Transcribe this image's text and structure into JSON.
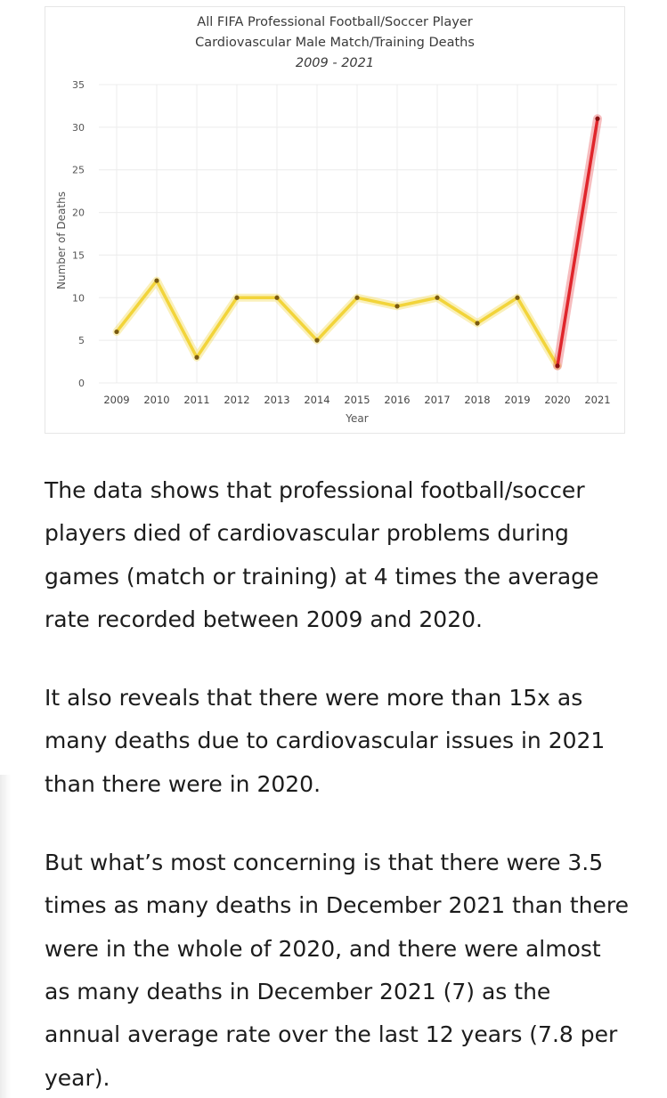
{
  "chart_data": {
    "type": "line",
    "title": "All FIFA Professional Football/Soccer Player",
    "title_line2": "Cardiovascular Male Match/Training Deaths",
    "subtitle": "2009 - 2021",
    "xlabel": "Year",
    "ylabel": "Number of Deaths",
    "ylim": [
      0,
      35
    ],
    "yticks": [
      0,
      5,
      10,
      15,
      20,
      25,
      30,
      35
    ],
    "grid": true,
    "categories": [
      "2009",
      "2010",
      "2011",
      "2012",
      "2013",
      "2014",
      "2015",
      "2016",
      "2017",
      "2018",
      "2019",
      "2020",
      "2021"
    ],
    "series": [
      {
        "name": "Deaths",
        "values": [
          6,
          12,
          3,
          10,
          10,
          5,
          10,
          9,
          10,
          7,
          10,
          2,
          31
        ],
        "color": "#f2d43a",
        "highlight_color": "#e0252b",
        "highlight_from_index": 11
      }
    ]
  },
  "article": {
    "paragraphs": [
      "The data shows that professional football/soccer players died of cardiovascular problems during games (match or training) at 4 times the average rate recorded between 2009 and 2020.",
      "It also reveals that there were more than 15x as many deaths due to cardiovascular issues in 2021 than there were in 2020.",
      "But what’s most concerning is that there were 3.5 times as many deaths in December 2021 than there were in the whole of 2020, and there were almost as many deaths in December 2021 (7) as the annual average rate over the last 12 years (7.8 per year)."
    ]
  }
}
